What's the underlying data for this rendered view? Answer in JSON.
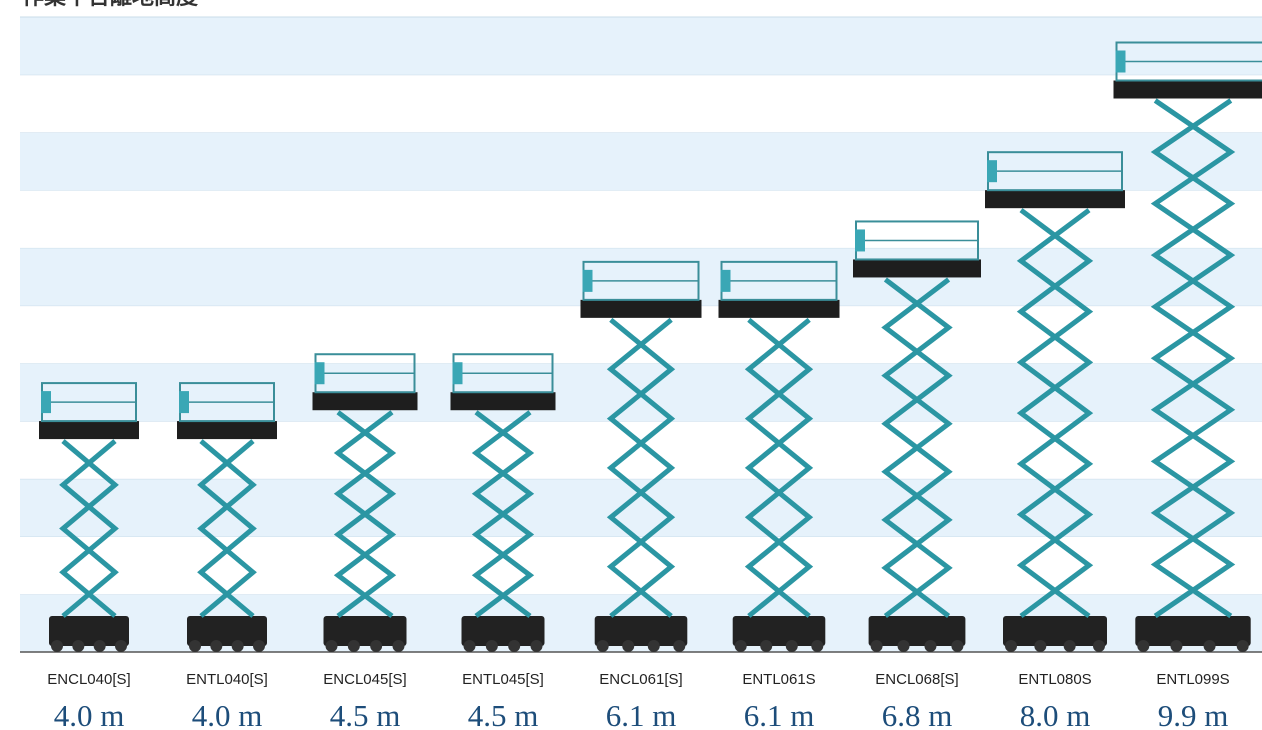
{
  "chart_data": {
    "type": "lift",
    "title": "作業平台離地高度",
    "categories": [
      "ENCL040[S]",
      "ENTL040[S]",
      "ENCL045[S]",
      "ENTL045[S]",
      "ENCL061[S]",
      "ENTL061S",
      "ENCL068[S]",
      "ENTL080S",
      "ENTL099S"
    ],
    "values": [
      4.0,
      4.0,
      4.5,
      4.5,
      6.1,
      6.1,
      6.8,
      8.0,
      9.9
    ],
    "value_labels": [
      "4.0 m",
      "4.0 m",
      "4.5 m",
      "4.5 m",
      "6.1 m",
      "6.1 m",
      "6.8 m",
      "8.0 m",
      "9.9 m"
    ],
    "color": "#2b96a3",
    "ylim": [
      0,
      11
    ]
  }
}
